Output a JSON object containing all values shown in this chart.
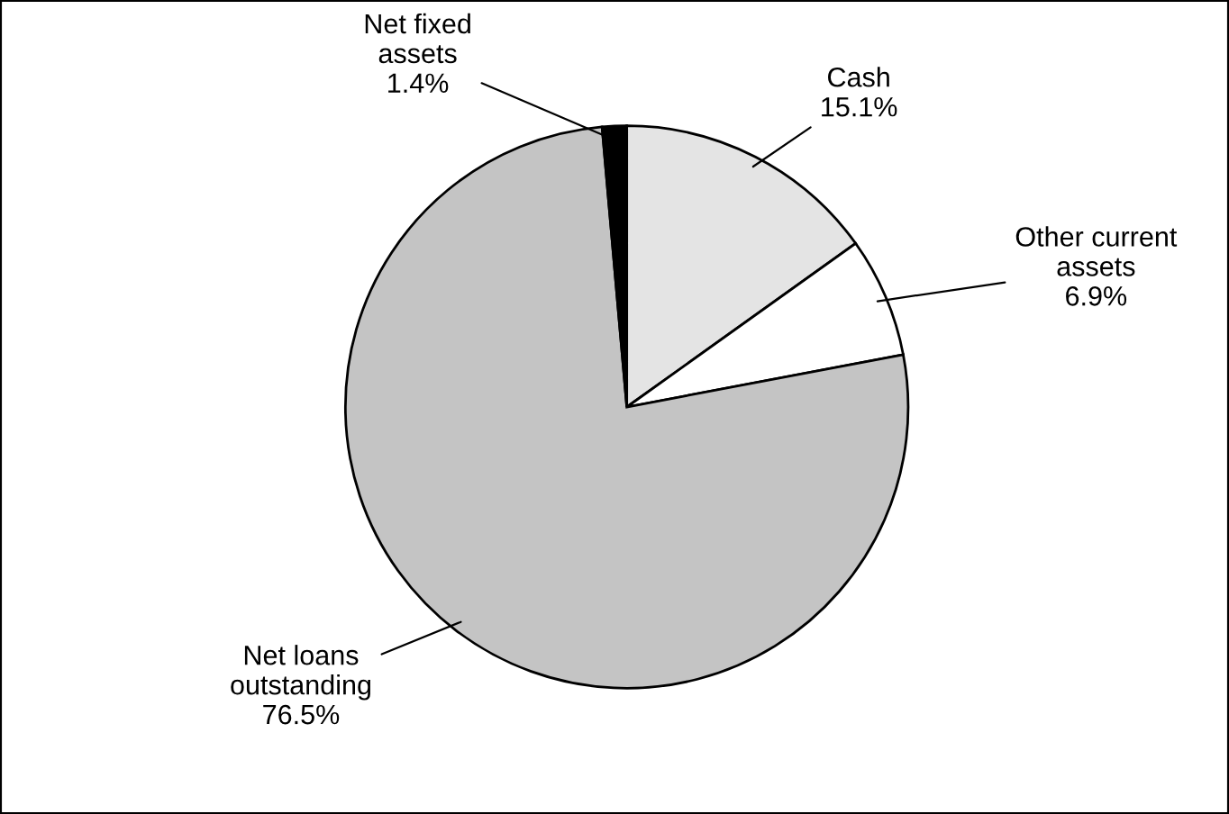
{
  "chart_data": {
    "type": "pie",
    "categories": [
      "Cash",
      "Other current\nassets",
      "Net loans\noutstanding",
      "Net fixed\nassets"
    ],
    "values": [
      15.1,
      6.9,
      76.5,
      1.4
    ],
    "value_labels": [
      "15.1%",
      "6.9%",
      "76.5%",
      "1.4%"
    ],
    "colors": [
      "#e4e4e4",
      "#ffffff",
      "#c4c4c4",
      "#000000"
    ]
  }
}
